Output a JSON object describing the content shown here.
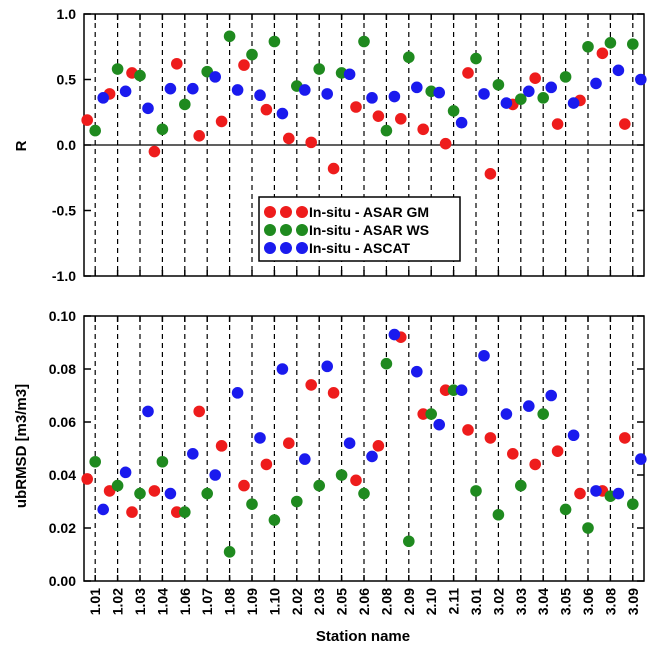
{
  "chart_data": [
    {
      "type": "scatter",
      "title": "",
      "xlabel": "",
      "ylabel": "R",
      "ylim": [
        -1.0,
        1.0
      ],
      "yticks": [
        "1.0",
        "0.5",
        "0.0",
        "-0.5",
        "-1.0"
      ],
      "ytick_values": [
        1.0,
        0.5,
        0.0,
        -0.5,
        -1.0
      ],
      "zero_line": true,
      "grid": "vertical dashed",
      "legend_position": "center-bottom",
      "series": [
        {
          "name": "In-situ - ASAR GM",
          "color": "#ee1c1c",
          "values": [
            0.19,
            0.39,
            0.55,
            -0.05,
            0.62,
            0.07,
            0.18,
            0.61,
            0.27,
            0.05,
            0.02,
            -0.18,
            0.29,
            0.22,
            0.2,
            0.12,
            0.01,
            0.55,
            -0.22,
            0.31,
            0.51,
            0.16,
            0.34,
            0.7,
            0.16
          ]
        },
        {
          "name": "In-situ - ASAR WS",
          "color": "#1f8a1f",
          "values": [
            0.11,
            0.58,
            0.53,
            0.12,
            0.31,
            0.56,
            0.83,
            0.69,
            0.79,
            0.45,
            0.58,
            0.55,
            0.79,
            0.11,
            0.67,
            0.41,
            0.26,
            0.66,
            0.46,
            0.35,
            0.36,
            0.52,
            0.75,
            0.78,
            0.77
          ]
        },
        {
          "name": "In-situ - ASCAT",
          "color": "#1a1aee",
          "values": [
            0.36,
            0.41,
            0.28,
            0.43,
            0.43,
            0.52,
            0.42,
            0.38,
            0.24,
            0.42,
            0.39,
            0.54,
            0.36,
            0.37,
            0.44,
            0.4,
            0.17,
            0.39,
            0.32,
            0.41,
            0.44,
            0.32,
            0.47,
            0.57,
            0.5
          ]
        }
      ]
    },
    {
      "type": "scatter",
      "title": "",
      "xlabel": "Station name",
      "ylabel": "ubRMSD [m3/m3]",
      "ylim": [
        0.0,
        0.1
      ],
      "yticks": [
        "0.10",
        "0.08",
        "0.06",
        "0.04",
        "0.02",
        "0.00"
      ],
      "ytick_values": [
        0.1,
        0.08,
        0.06,
        0.04,
        0.02,
        0.0
      ],
      "grid": "vertical dashed",
      "categories": [
        "1.01",
        "1.02",
        "1.03",
        "1.04",
        "1.06",
        "1.07",
        "1.08",
        "1.09",
        "1.10",
        "2.02",
        "2.03",
        "2.05",
        "2.06",
        "2.08",
        "2.09",
        "2.10",
        "2.11",
        "3.01",
        "3.02",
        "3.03",
        "3.04",
        "3.05",
        "3.06",
        "3.08",
        "3.09"
      ],
      "series": [
        {
          "name": "In-situ - ASAR GM",
          "color": "#ee1c1c",
          "values": [
            0.0385,
            0.034,
            0.026,
            0.034,
            0.026,
            0.064,
            0.051,
            0.036,
            0.044,
            0.052,
            0.074,
            0.071,
            0.038,
            0.051,
            0.092,
            0.063,
            0.072,
            0.057,
            0.054,
            0.048,
            0.044,
            0.049,
            0.033,
            0.034,
            0.054
          ]
        },
        {
          "name": "In-situ - ASAR WS",
          "color": "#1f8a1f",
          "values": [
            0.045,
            0.036,
            0.033,
            0.045,
            0.026,
            0.033,
            0.011,
            0.029,
            0.023,
            0.03,
            0.036,
            0.04,
            0.033,
            0.082,
            0.015,
            0.063,
            0.072,
            0.034,
            0.025,
            0.036,
            0.063,
            0.027,
            0.02,
            0.032,
            0.029
          ]
        },
        {
          "name": "In-situ - ASCAT",
          "color": "#1a1aee",
          "values": [
            0.027,
            0.041,
            0.064,
            0.033,
            0.048,
            0.04,
            0.071,
            0.054,
            0.08,
            0.046,
            0.081,
            0.052,
            0.047,
            0.093,
            0.079,
            0.059,
            0.072,
            0.085,
            0.063,
            0.066,
            0.07,
            0.055,
            0.034,
            0.033,
            0.046
          ]
        }
      ]
    }
  ]
}
